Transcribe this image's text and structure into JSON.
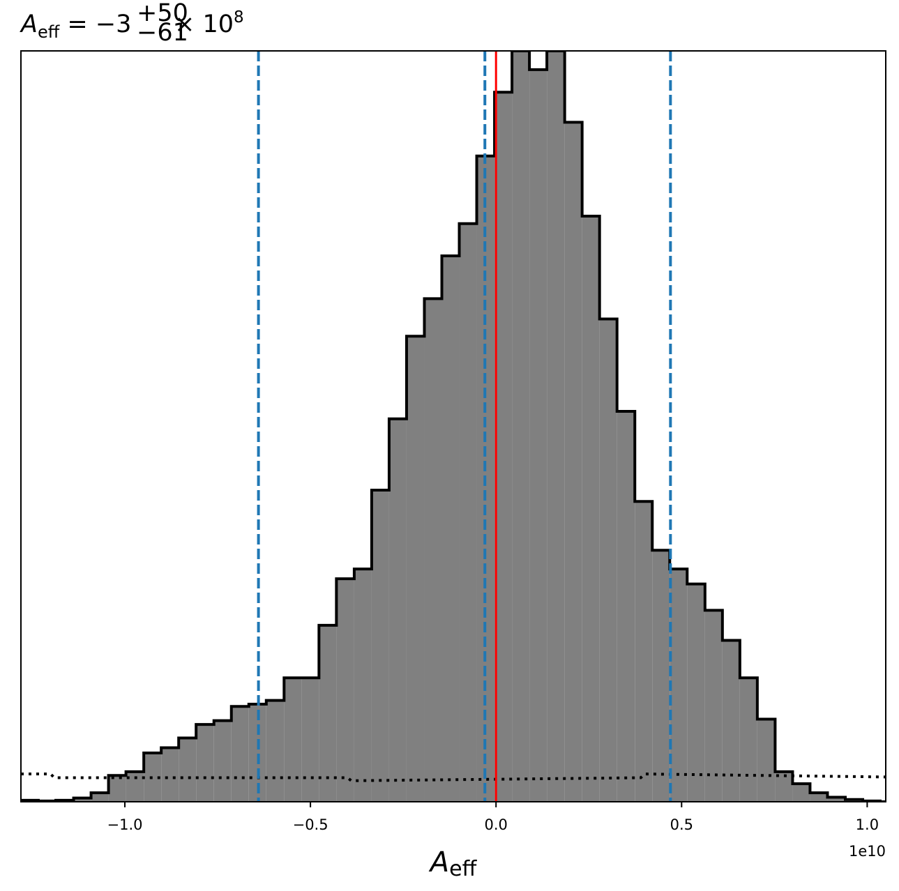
{
  "chart_data": {
    "type": "histogram",
    "title": {
      "symbol": "A",
      "symbol_sub": "eff",
      "equals": " = −3",
      "sup": "+50",
      "sub": "−61",
      "times": " × 10",
      "exp": "8"
    },
    "xlabel": {
      "symbol": "A",
      "sub": "eff"
    },
    "x_offset_label": "1e10",
    "x_unit_scale": 10000000000.0,
    "xlim": [
      -1.28,
      1.05
    ],
    "ylim": [
      0,
      1.0
    ],
    "y_ticks_visible": false,
    "x_ticks": [
      -1.0,
      -0.5,
      0.0,
      0.5,
      1.0
    ],
    "x_tick_labels": [
      "−1.0",
      "−0.5",
      "0.0",
      "0.5",
      "1.0"
    ],
    "histogram": {
      "bin_edges": [
        -1.28,
        -1.233,
        -1.186,
        -1.138,
        -1.091,
        -1.044,
        -0.997,
        -0.949,
        -0.902,
        -0.855,
        -0.808,
        -0.76,
        -0.713,
        -0.666,
        -0.619,
        -0.571,
        -0.524,
        -0.477,
        -0.43,
        -0.382,
        -0.335,
        -0.288,
        -0.241,
        -0.193,
        -0.146,
        -0.099,
        -0.052,
        -0.004,
        0.043,
        0.09,
        0.137,
        0.185,
        0.232,
        0.279,
        0.326,
        0.374,
        0.421,
        0.468,
        0.515,
        0.563,
        0.61,
        0.657,
        0.704,
        0.752,
        0.799,
        0.846,
        0.893,
        0.941,
        0.988,
        1.035,
        1.05
      ],
      "counts": [
        0.002,
        0.001,
        0.002,
        0.005,
        0.012,
        0.035,
        0.04,
        0.065,
        0.072,
        0.085,
        0.103,
        0.108,
        0.127,
        0.13,
        0.135,
        0.165,
        0.165,
        0.235,
        0.297,
        0.31,
        0.415,
        0.51,
        0.62,
        0.67,
        0.727,
        0.77,
        0.86,
        0.945,
        1.0,
        0.975,
        1.0,
        0.905,
        0.78,
        0.643,
        0.52,
        0.4,
        0.335,
        0.31,
        0.29,
        0.255,
        0.215,
        0.165,
        0.11,
        0.04,
        0.024,
        0.012,
        0.006,
        0.003,
        0.001,
        0.0
      ],
      "fill_color": "#808080",
      "edge_color": "#000000"
    },
    "prior_dotted": {
      "x": [
        -1.28,
        -1.2,
        -1.19,
        -0.4,
        -0.39,
        0.39,
        0.4,
        1.05
      ],
      "y": [
        0.037,
        0.037,
        0.032,
        0.032,
        0.028,
        0.032,
        0.037,
        0.033
      ],
      "color": "#000000"
    },
    "quantile_lines": {
      "values": [
        -0.64,
        -0.03,
        0.47
      ],
      "color": "#1f77b4",
      "style": "dashed"
    },
    "truth_line": {
      "value": 0.0,
      "color": "#ff0000"
    },
    "grid": false
  }
}
